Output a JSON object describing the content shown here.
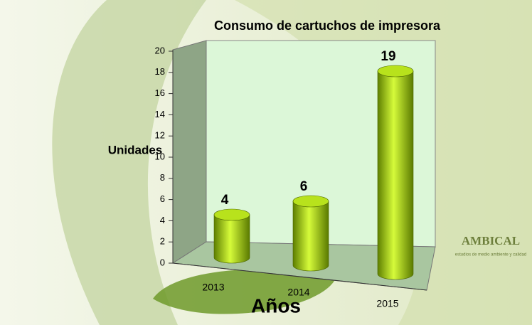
{
  "chart_data": {
    "type": "bar3d",
    "title": "Consumo de cartuchos de impresora",
    "categories": [
      "2013",
      "2014",
      "2015"
    ],
    "values": [
      4,
      6,
      19
    ],
    "color": "#a8d800",
    "ylim": [
      0,
      20
    ],
    "yticks": [
      0,
      2,
      4,
      6,
      8,
      10,
      12,
      14,
      16,
      18,
      20
    ],
    "y_label": "Unidades",
    "x_label": "Años",
    "grid": false
  },
  "logo": {
    "name": "AMBICAL",
    "tagline": "estudios de medio ambiente y calidad"
  }
}
